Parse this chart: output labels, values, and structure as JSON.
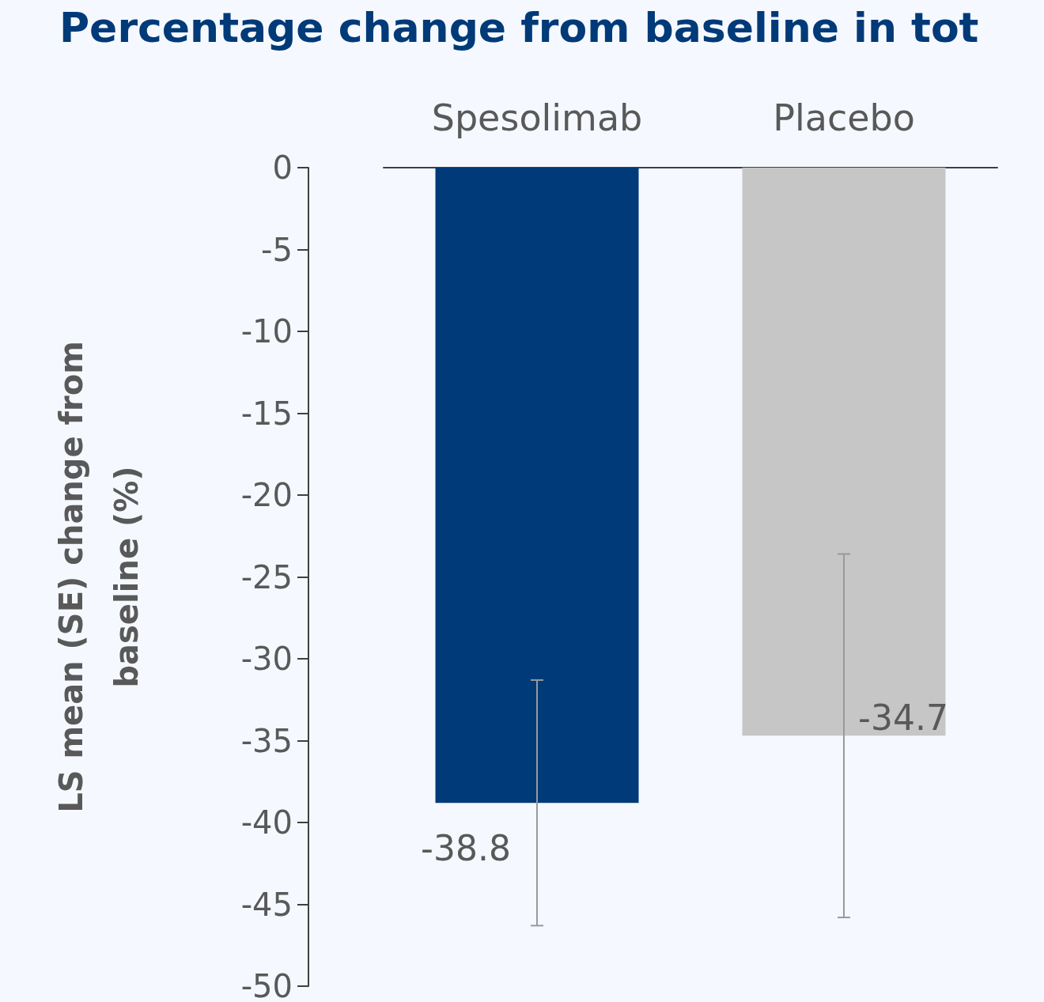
{
  "chart_data": {
    "type": "bar",
    "title": "Percentage change from baseline in tot",
    "ylabel": "LS mean (SE) change from baseline (%)",
    "categories": [
      "Spesolimab",
      "Placebo"
    ],
    "values": [
      -38.8,
      -34.7
    ],
    "colors": [
      "#003a78",
      "#c6c6c6"
    ],
    "errors": [
      [
        -46.3,
        -31.3
      ],
      [
        -45.8,
        -23.6
      ]
    ],
    "ylim": [
      -50,
      0
    ],
    "yticks": [
      0,
      -5,
      -10,
      -15,
      -20,
      -25,
      -30,
      -35,
      -40,
      -45,
      -50
    ],
    "grid": false,
    "data_labels": true
  }
}
